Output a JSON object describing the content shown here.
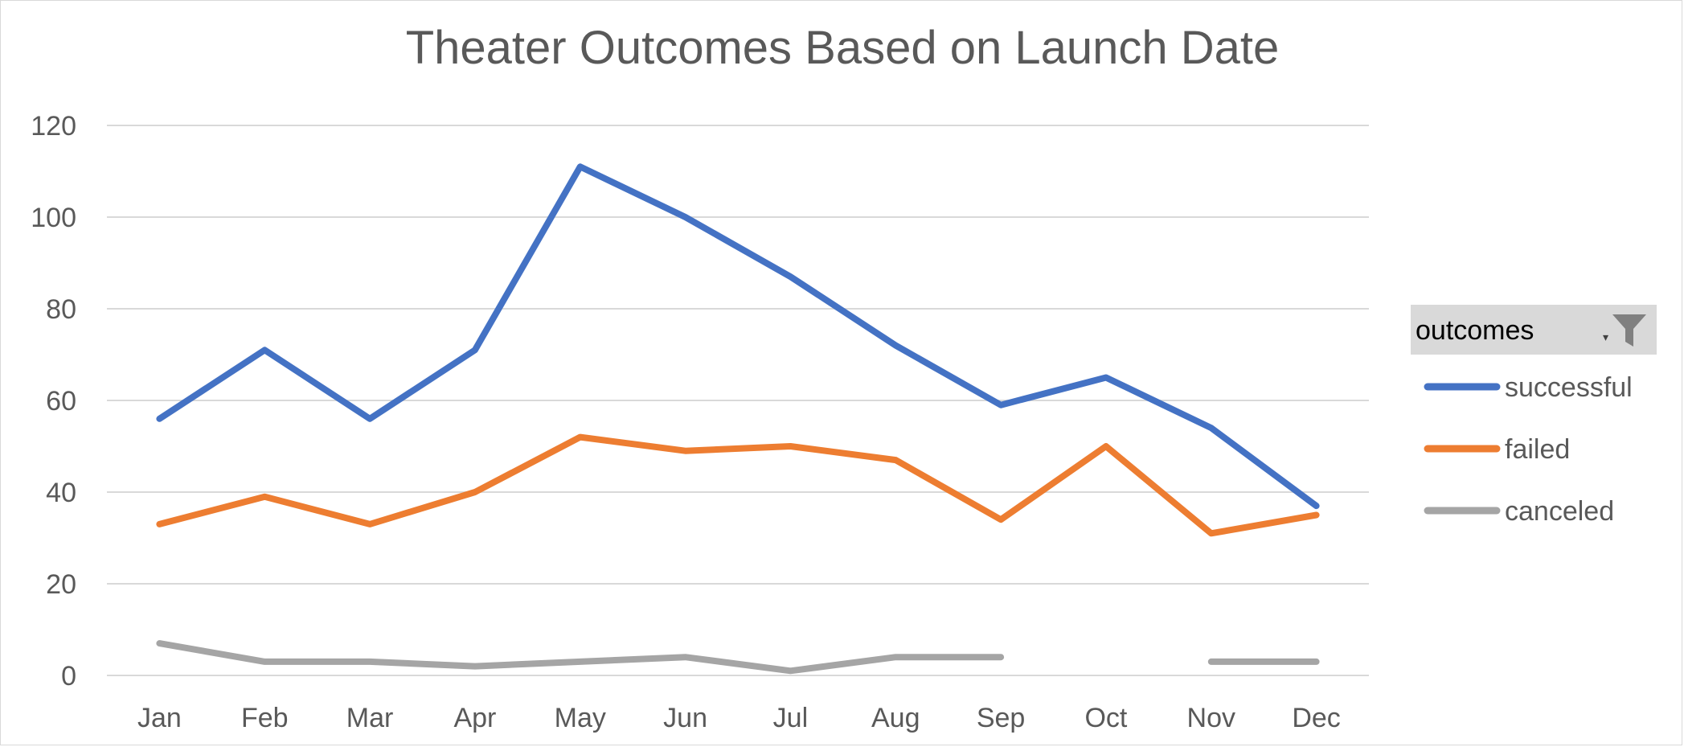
{
  "chart_data": {
    "type": "line",
    "title": "Theater Outcomes Based on Launch Date",
    "xlabel": "",
    "ylabel": "",
    "categories": [
      "Jan",
      "Feb",
      "Mar",
      "Apr",
      "May",
      "Jun",
      "Jul",
      "Aug",
      "Sep",
      "Oct",
      "Nov",
      "Dec"
    ],
    "ylim": [
      0,
      120
    ],
    "yticks": [
      0,
      20,
      40,
      60,
      80,
      100,
      120
    ],
    "grid": true,
    "legend_title": "outcomes",
    "legend_position": "right",
    "series": [
      {
        "name": "successful",
        "color": "#4472C4",
        "values": [
          56,
          71,
          56,
          71,
          111,
          100,
          87,
          72,
          59,
          65,
          54,
          37
        ]
      },
      {
        "name": "failed",
        "color": "#ED7D31",
        "values": [
          33,
          39,
          33,
          40,
          52,
          49,
          50,
          47,
          34,
          50,
          31,
          35
        ]
      },
      {
        "name": "canceled",
        "color": "#A5A5A5",
        "values": [
          7,
          3,
          3,
          2,
          3,
          4,
          1,
          4,
          4,
          null,
          3,
          3
        ]
      }
    ]
  }
}
